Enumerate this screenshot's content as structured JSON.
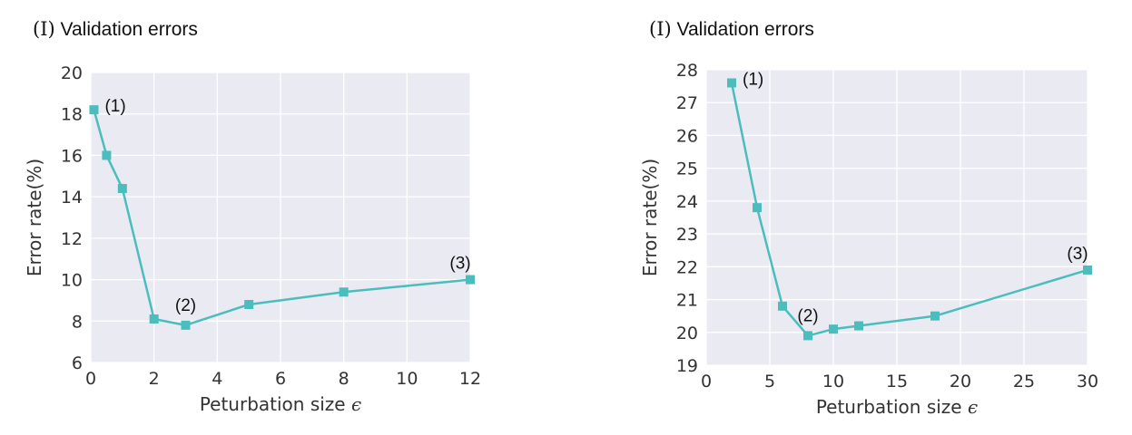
{
  "chart_data": [
    {
      "type": "line",
      "title_num": "(I)",
      "title_text": "Validation errors",
      "xlabel": "Peturbation size",
      "xlabel_symbol": "ϵ",
      "ylabel": "Error rate(%)",
      "xlim": [
        0,
        12
      ],
      "ylim": [
        6,
        20
      ],
      "xticks": [
        0,
        2,
        4,
        6,
        8,
        10,
        12
      ],
      "yticks": [
        6,
        8,
        10,
        12,
        14,
        16,
        18,
        20
      ],
      "grid": true,
      "color": "#4bbdbd",
      "x": [
        0.1,
        0.5,
        1,
        2,
        3,
        5,
        8,
        12
      ],
      "y": [
        18.2,
        16.0,
        14.4,
        8.1,
        7.8,
        8.8,
        9.4,
        10.0
      ],
      "annotations": [
        {
          "text": "(1)",
          "x": 0.1,
          "y": 18.2,
          "pos": "right"
        },
        {
          "text": "(2)",
          "x": 3,
          "y": 7.8,
          "pos": "above"
        },
        {
          "text": "(3)",
          "x": 12,
          "y": 10.0,
          "pos": "above-left"
        }
      ]
    },
    {
      "type": "line",
      "title_num": "(I)",
      "title_text": "Validation errors",
      "xlabel": "Peturbation size",
      "xlabel_symbol": "ϵ",
      "ylabel": "Error rate(%)",
      "xlim": [
        0,
        30
      ],
      "ylim": [
        19,
        28
      ],
      "xticks": [
        0,
        5,
        10,
        15,
        20,
        25,
        30
      ],
      "yticks": [
        19,
        20,
        21,
        22,
        23,
        24,
        25,
        26,
        27,
        28
      ],
      "grid": true,
      "color": "#4bbdbd",
      "x": [
        2,
        4,
        6,
        8,
        10,
        12,
        18,
        30
      ],
      "y": [
        27.6,
        23.8,
        20.8,
        19.9,
        20.1,
        20.2,
        20.5,
        21.9
      ],
      "annotations": [
        {
          "text": "(1)",
          "x": 2,
          "y": 27.6,
          "pos": "right"
        },
        {
          "text": "(2)",
          "x": 8,
          "y": 19.9,
          "pos": "above"
        },
        {
          "text": "(3)",
          "x": 30,
          "y": 21.9,
          "pos": "above-left"
        }
      ]
    }
  ]
}
